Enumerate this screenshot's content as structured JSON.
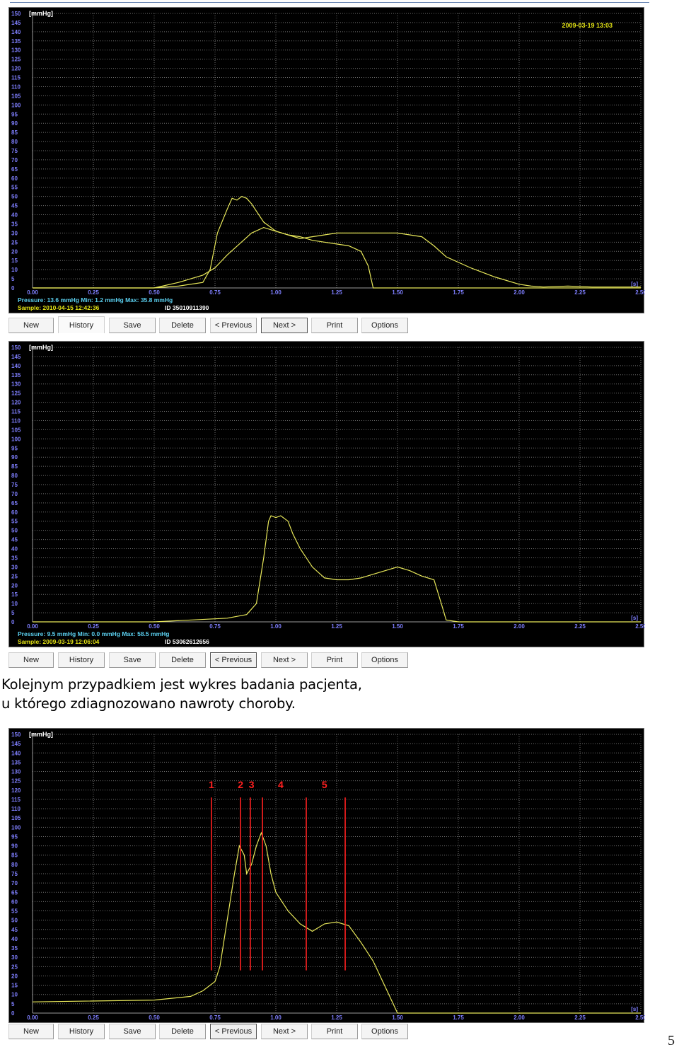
{
  "charts": [
    {
      "unit_label": "[mmHg]",
      "datetime": "2009-03-19 13:03",
      "y_ticks": [
        "150",
        "145",
        "140",
        "135",
        "130",
        "125",
        "120",
        "115",
        "110",
        "105",
        "100",
        "95",
        "90",
        "85",
        "80",
        "75",
        "70",
        "65",
        "60",
        "55",
        "50",
        "45",
        "40",
        "35",
        "30",
        "25",
        "20",
        "15",
        "10",
        "5",
        "0"
      ],
      "x_ticks": [
        "0.00",
        "0.25",
        "0.50",
        "0.75",
        "1.00",
        "1.25",
        "1.50",
        "1.75",
        "2.00",
        "2.25",
        "2.50"
      ],
      "x_unit": "[s]",
      "status_line1": "Pressure: 13.6 mmHg  Min:   1.2 mmHg  Max:  35.8 mmHg",
      "status_line2_left": "Sample: 2010-04-15 12:42:36",
      "status_line2_right": "ID 35010911390"
    },
    {
      "unit_label": "[mmHg]",
      "y_ticks": [
        "150",
        "145",
        "140",
        "135",
        "130",
        "125",
        "120",
        "115",
        "110",
        "105",
        "100",
        "95",
        "90",
        "85",
        "80",
        "75",
        "70",
        "65",
        "60",
        "55",
        "50",
        "45",
        "40",
        "35",
        "30",
        "25",
        "20",
        "15",
        "10",
        "5",
        "0"
      ],
      "x_ticks": [
        "0.00",
        "0.25",
        "0.50",
        "0.75",
        "1.00",
        "1.25",
        "1.50",
        "1.75",
        "2.00",
        "2.25",
        "2.50"
      ],
      "x_unit": "[s]",
      "status_line1": "Pressure:   9.5 mmHg  Min:   0.0 mmHg  Max:  58.5 mmHg",
      "status_line2_left": "Sample: 2009-03-19 12:06:04",
      "status_line2_right": "ID 53062612656"
    },
    {
      "unit_label": "[mmHg]",
      "y_ticks": [
        "150",
        "145",
        "140",
        "135",
        "130",
        "125",
        "120",
        "115",
        "110",
        "105",
        "100",
        "95",
        "90",
        "85",
        "80",
        "75",
        "70",
        "65",
        "60",
        "55",
        "50",
        "45",
        "40",
        "35",
        "30",
        "25",
        "20",
        "15",
        "10",
        "5",
        "0"
      ],
      "x_ticks": [
        "0.00",
        "0.25",
        "0.50",
        "0.75",
        "1.00",
        "1.25",
        "1.50",
        "1.75",
        "2.00",
        "2.25",
        "2.50"
      ],
      "x_unit": "[s]",
      "markers": [
        "1",
        "2",
        "3",
        "4",
        "5"
      ]
    }
  ],
  "toolbar": {
    "new": "New",
    "history": "History",
    "save": "Save",
    "delete": "Delete",
    "previous": "< Previous",
    "next": "Next >",
    "print": "Print",
    "options": "Options"
  },
  "caption_line1": "Kolejnym przypadkiem jest wykres badania pacjenta,",
  "caption_line2": "u którego zdiagnozowano nawroty choroby.",
  "page_number": "5",
  "chart_data": [
    {
      "type": "line",
      "xlim": [
        0,
        2.5
      ],
      "ylim": [
        0,
        150
      ],
      "series": [
        {
          "x": [
            0.0,
            0.5,
            0.6,
            0.7,
            0.73,
            0.76,
            0.8,
            0.82,
            0.84,
            0.86,
            0.88,
            0.9,
            0.92,
            0.95,
            1.0,
            1.05,
            1.1,
            1.15,
            1.2,
            1.25,
            1.3,
            1.35,
            1.38,
            1.4,
            1.43,
            1.45,
            1.5,
            2.5
          ],
          "y": [
            0,
            0,
            1,
            3,
            10,
            30,
            43,
            49,
            48,
            50,
            49,
            46,
            42,
            36,
            31,
            29,
            28,
            26,
            25,
            24,
            23,
            20,
            12,
            0,
            0,
            0,
            0,
            0
          ]
        },
        {
          "x": [
            0.0,
            0.5,
            0.6,
            0.7,
            0.75,
            0.8,
            0.85,
            0.9,
            0.95,
            1.0,
            1.05,
            1.1,
            1.15,
            1.2,
            1.25,
            1.3,
            1.35,
            1.4,
            1.45,
            1.5,
            1.6,
            1.65,
            1.7,
            1.8,
            1.9,
            2.0,
            2.05,
            2.1,
            2.2,
            2.3,
            2.5
          ],
          "y": [
            0,
            0,
            3,
            7,
            11,
            18,
            24,
            30,
            33,
            31,
            29,
            27,
            28,
            29,
            30,
            30,
            30,
            30,
            30,
            30,
            28,
            23,
            17,
            11,
            6,
            2,
            1,
            0.5,
            1,
            0.5,
            0.5
          ]
        }
      ]
    },
    {
      "type": "line",
      "xlim": [
        0,
        2.5
      ],
      "ylim": [
        0,
        150
      ],
      "series": [
        {
          "x": [
            0.0,
            0.5,
            0.8,
            0.88,
            0.92,
            0.95,
            0.97,
            0.98,
            1.0,
            1.02,
            1.05,
            1.07,
            1.1,
            1.15,
            1.2,
            1.25,
            1.3,
            1.35,
            1.4,
            1.45,
            1.5,
            1.55,
            1.6,
            1.65,
            1.68,
            1.7,
            1.75,
            2.5
          ],
          "y": [
            0,
            0,
            2,
            4,
            10,
            35,
            55,
            58,
            57,
            58,
            55,
            48,
            40,
            30,
            24,
            23,
            23,
            24,
            26,
            28,
            30,
            28,
            25,
            23,
            10,
            1,
            0,
            0
          ]
        }
      ]
    },
    {
      "type": "line",
      "xlim": [
        0,
        2.5
      ],
      "ylim": [
        0,
        150
      ],
      "series": [
        {
          "x": [
            0.0,
            0.5,
            0.65,
            0.7,
            0.75,
            0.77,
            0.8,
            0.83,
            0.85,
            0.87,
            0.88,
            0.9,
            0.92,
            0.94,
            0.96,
            0.98,
            1.0,
            1.05,
            1.1,
            1.15,
            1.2,
            1.25,
            1.3,
            1.35,
            1.4,
            1.45,
            1.5,
            2.5
          ],
          "y": [
            6,
            7,
            9,
            12,
            17,
            25,
            50,
            75,
            90,
            85,
            75,
            80,
            90,
            97,
            90,
            75,
            65,
            55,
            48,
            44,
            48,
            49,
            47,
            38,
            28,
            14,
            0,
            0
          ]
        }
      ],
      "markers_x": [
        0.735,
        0.855,
        0.895,
        0.945,
        1.125,
        1.285
      ]
    }
  ]
}
